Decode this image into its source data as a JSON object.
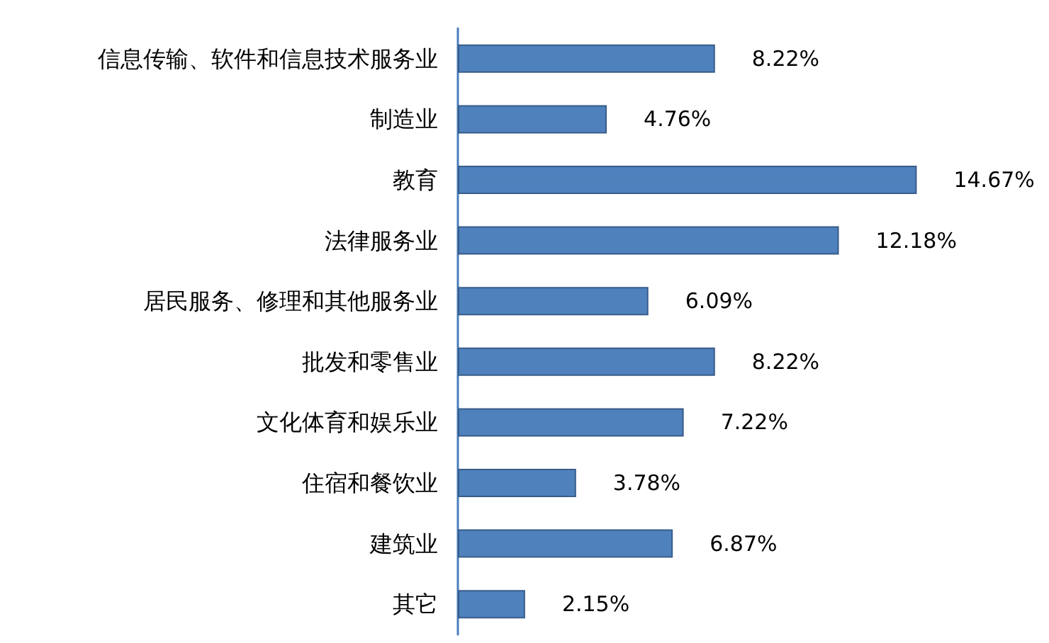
{
  "chart_data": {
    "type": "bar",
    "orientation": "horizontal",
    "categories": [
      "信息传输、软件和信息技术服务业",
      "制造业",
      "教育",
      "法律服务业",
      "居民服务、修理和其他服务业",
      "批发和零售业",
      "文化体育和娱乐业",
      "住宿和餐饮业",
      "建筑业",
      "其它"
    ],
    "values": [
      8.22,
      4.76,
      14.67,
      12.18,
      6.09,
      8.22,
      7.22,
      3.78,
      6.87,
      2.15
    ],
    "value_labels": [
      "8.22%",
      "4.76%",
      "14.67%",
      "12.18%",
      "6.09%",
      "8.22%",
      "7.22%",
      "3.78%",
      "6.87%",
      "2.15%"
    ],
    "color": "#4f81bd"
  }
}
